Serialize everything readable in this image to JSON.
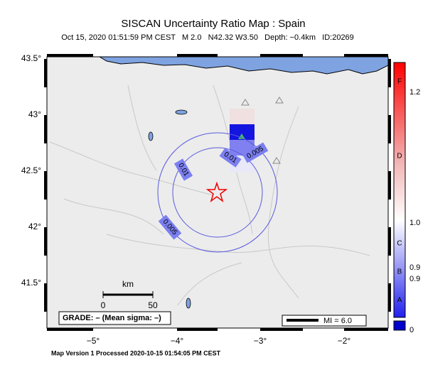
{
  "header": {
    "title": "SISCAN Uncertainty Ratio Map : Spain",
    "subtitle": "Oct 15, 2020 01:51:59 PM CEST   M 2.0   N42.32 W3.50   Depth: −0.4km   ID:20269"
  },
  "map": {
    "lat_labels": [
      "43.5°",
      "43°",
      "42.5°",
      "42°",
      "41.5°"
    ],
    "lon_labels": [
      "−5°",
      "−4°",
      "−3°",
      "−2°"
    ],
    "contour_labels": [
      "0.005",
      "0.01",
      "0.01",
      "0.005"
    ],
    "scale": {
      "unit": "km",
      "ticks": [
        0,
        50
      ]
    },
    "grade": "GRADE: – (Mean sigma: –)",
    "mi": "MI = 6.0"
  },
  "colorbar": {
    "letters": [
      "F",
      "D",
      "C",
      "B",
      "A"
    ],
    "labels": [
      "1.2",
      "1.0",
      "0.9",
      "0.9",
      "0"
    ]
  },
  "footer": "Map Version 1 Processed 2020-10-15 01:54:05 PM CEST"
}
